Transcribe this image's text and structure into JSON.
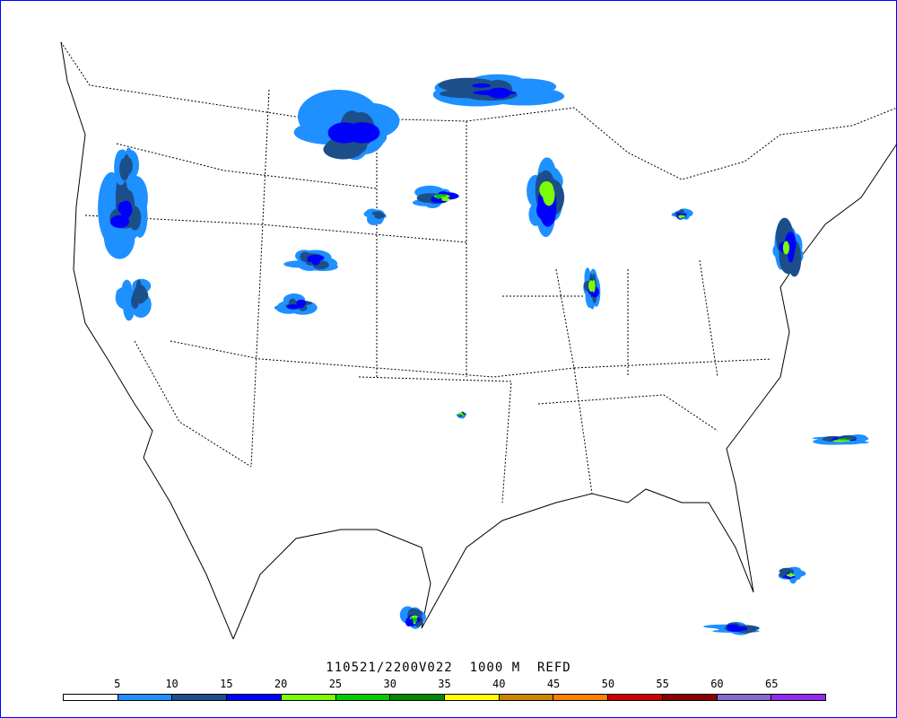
{
  "title": "110521/2200V022  1000 M  REFD",
  "legend": {
    "ticks": [
      "5",
      "10",
      "15",
      "20",
      "25",
      "30",
      "35",
      "40",
      "45",
      "50",
      "55",
      "60",
      "65"
    ],
    "colors": [
      "#ffffff",
      "#1e90ff",
      "#1c4f8a",
      "#0000ff",
      "#7cfc00",
      "#00cd00",
      "#008b00",
      "#ffff00",
      "#cd8500",
      "#ff7f00",
      "#cd0000",
      "#8b0000",
      "#8968cd",
      "#912cee"
    ]
  },
  "frame_color": "#0000ff"
}
